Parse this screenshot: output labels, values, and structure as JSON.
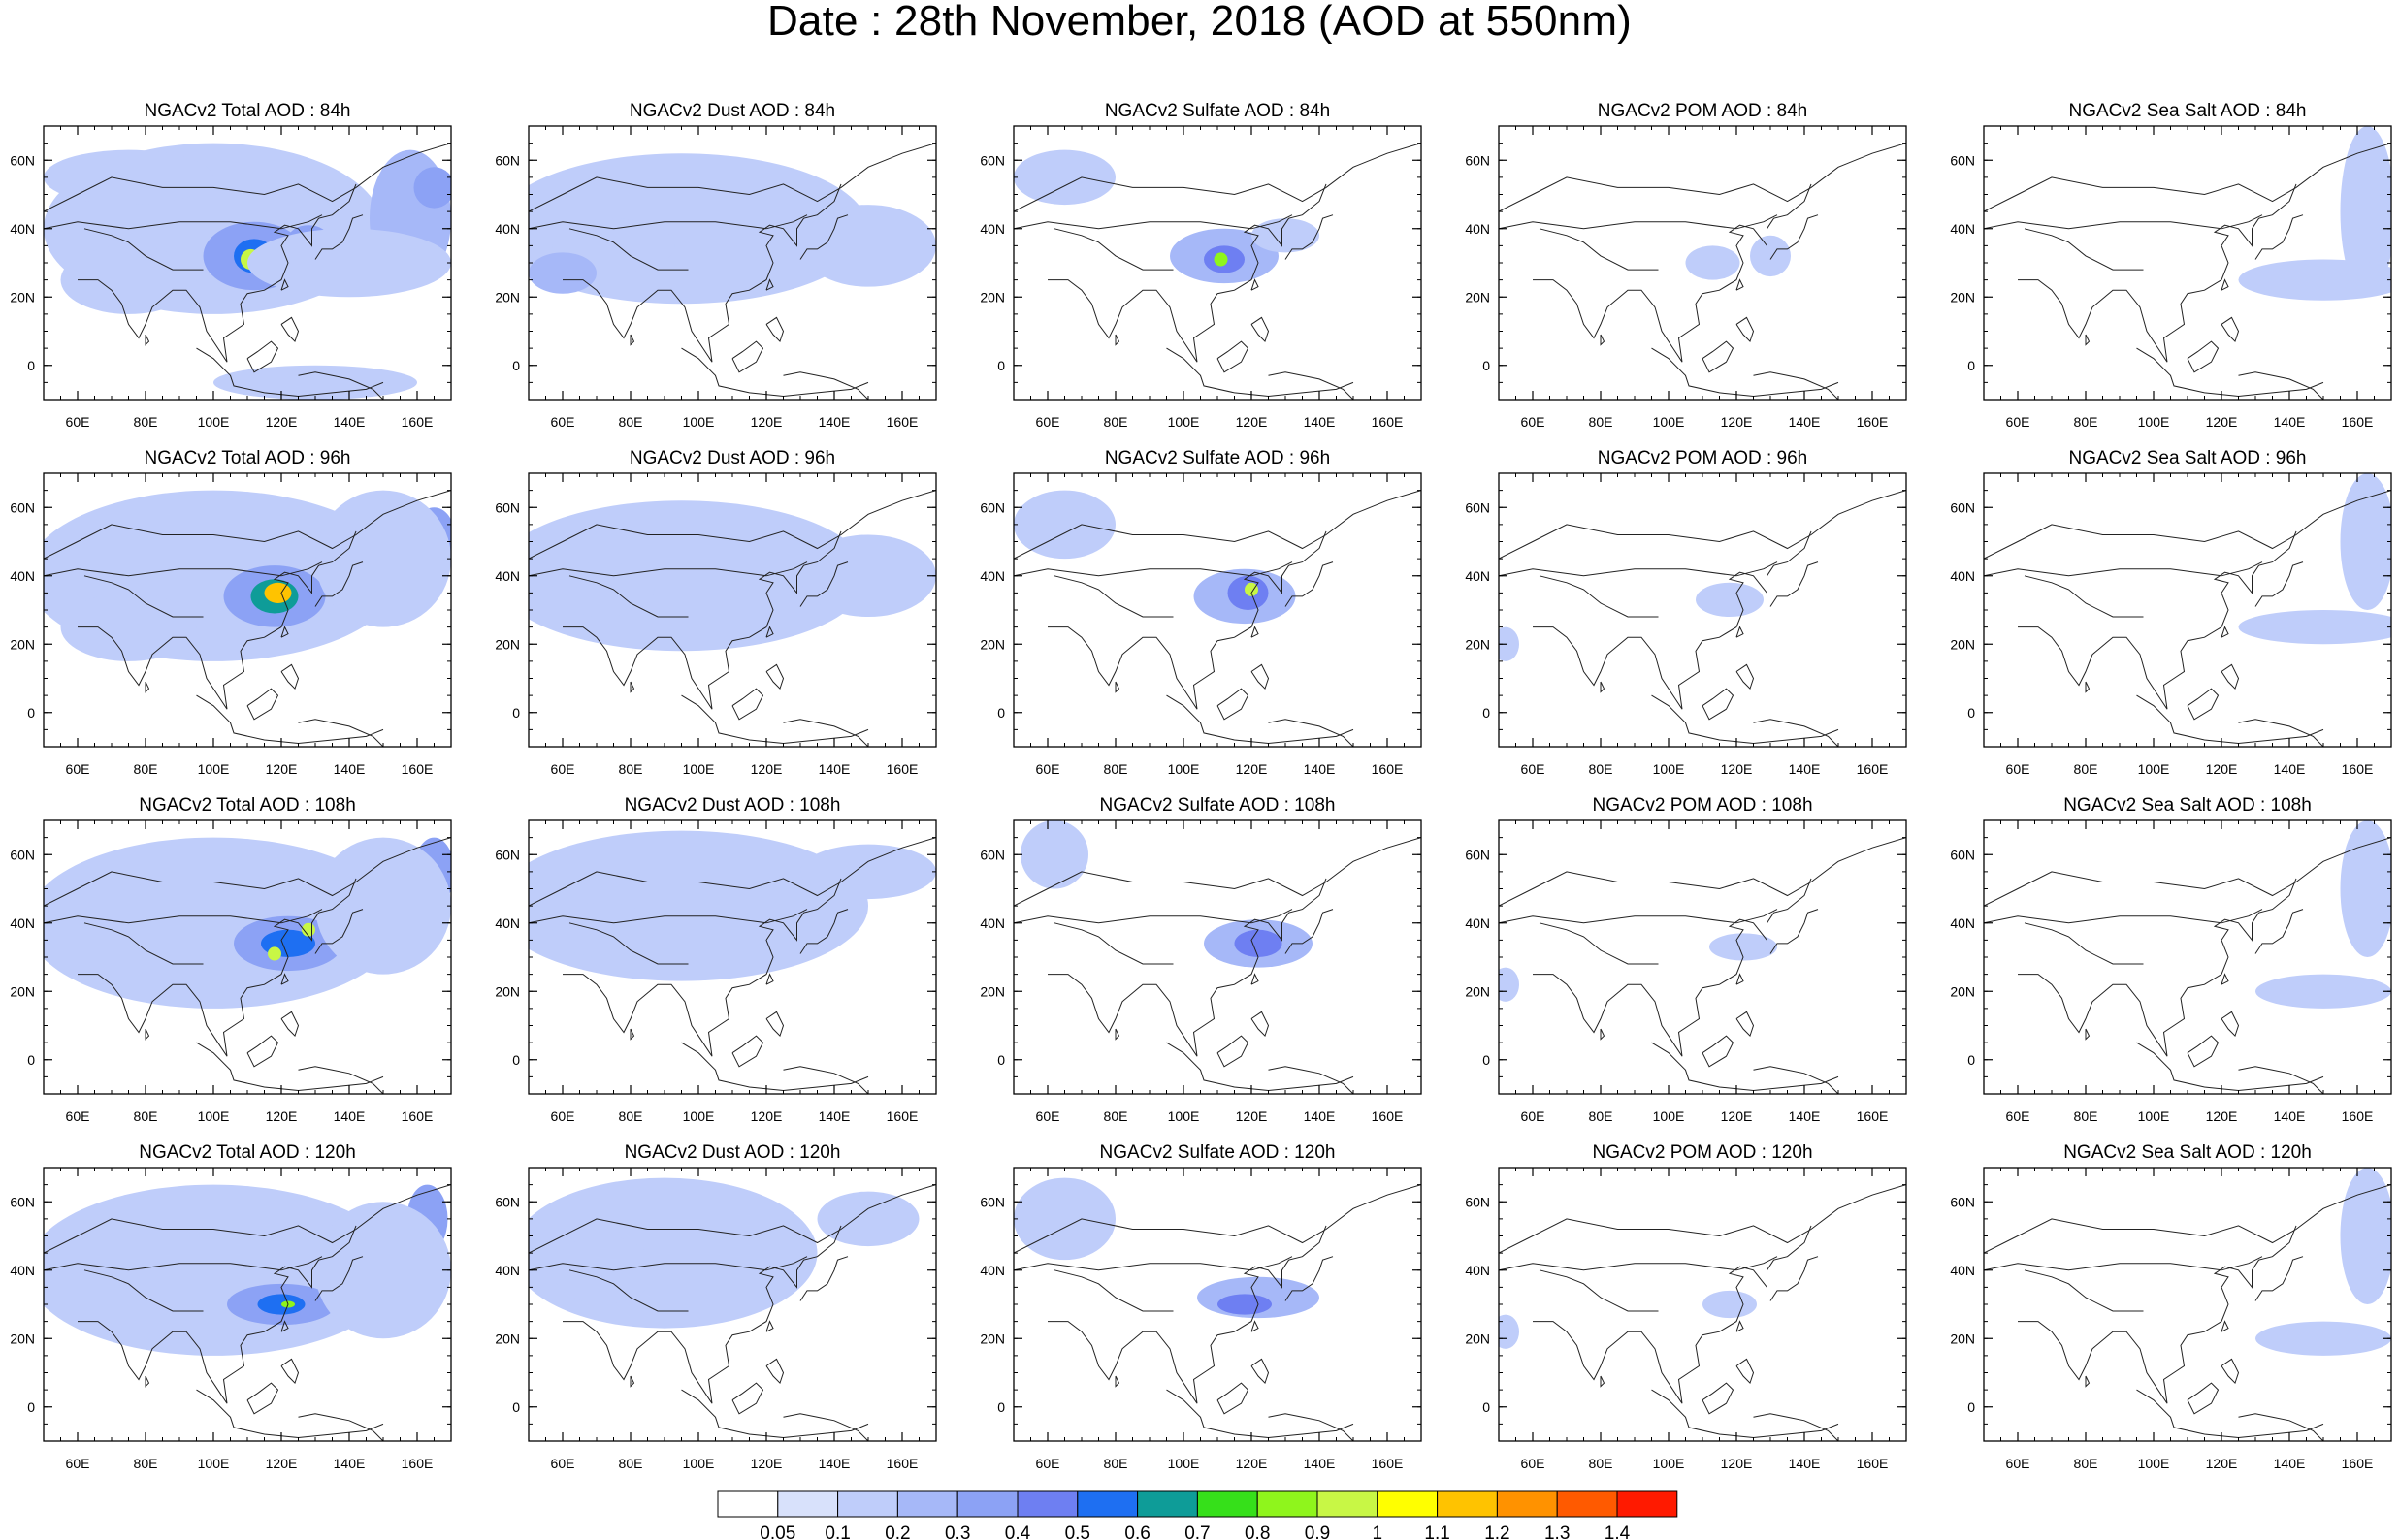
{
  "title": "Date : 28th November, 2018 (AOD at 550nm)",
  "panels": [
    [
      "NGACv2 Total AOD : 84h",
      "NGACv2 Dust AOD : 84h",
      "NGACv2 Sulfate AOD : 84h",
      "NGACv2 POM AOD : 84h",
      "NGACv2 Sea Salt AOD : 84h"
    ],
    [
      "NGACv2 Total AOD : 96h",
      "NGACv2 Dust AOD : 96h",
      "NGACv2 Sulfate AOD : 96h",
      "NGACv2 POM AOD : 96h",
      "NGACv2 Sea Salt AOD : 96h"
    ],
    [
      "NGACv2 Total AOD : 108h",
      "NGACv2 Dust AOD : 108h",
      "NGACv2 Sulfate AOD : 108h",
      "NGACv2 POM AOD : 108h",
      "NGACv2 Sea Salt AOD : 108h"
    ],
    [
      "NGACv2 Total AOD : 120h",
      "NGACv2 Dust AOD : 120h",
      "NGACv2 Sulfate AOD : 120h",
      "NGACv2 POM AOD : 120h",
      "NGACv2 Sea Salt  AOD : 120h"
    ]
  ],
  "map": {
    "lon_range": [
      50,
      170
    ],
    "lat_range": [
      -10,
      70
    ],
    "lon_ticks": [
      "60E",
      "80E",
      "100E",
      "120E",
      "140E",
      "160E"
    ],
    "lat_ticks": [
      "60N",
      "40N",
      "20N",
      "0"
    ]
  },
  "colorbar": {
    "labels": [
      "0.05",
      "0.1",
      "0.2",
      "0.3",
      "0.4",
      "0.5",
      "0.6",
      "0.7",
      "0.8",
      "0.9",
      "1",
      "1.1",
      "1.2",
      "1.3",
      "1.4"
    ],
    "colors": [
      "#ffffff",
      "#d8e1fb",
      "#bfcdfa",
      "#a6b8f8",
      "#8ca2f5",
      "#6e7ff2",
      "#1e6ff2",
      "#0e9c98",
      "#36e01a",
      "#8ff51c",
      "#c8f745",
      "#ffff00",
      "#ffc300",
      "#ff9200",
      "#ff5a00",
      "#ff1a00"
    ]
  },
  "chart_data": {
    "type": "heatmap",
    "title": "Date : 28th November, 2018 (AOD at 550nm)",
    "xlabel": "",
    "ylabel": "",
    "x_ticks": [
      "60E",
      "80E",
      "100E",
      "120E",
      "140E",
      "160E"
    ],
    "y_ticks": [
      "60N",
      "40N",
      "20N",
      "0"
    ],
    "xlim": [
      50,
      170
    ],
    "ylim": [
      -10,
      70
    ],
    "color_levels": [
      0.05,
      0.1,
      0.2,
      0.3,
      0.4,
      0.5,
      0.6,
      0.7,
      0.8,
      0.9,
      1,
      1.1,
      1.2,
      1.3,
      1.4
    ],
    "grid": false,
    "legend": "bottom colorbar",
    "panels": [
      {
        "title": "NGACv2 Total AOD : 84h",
        "blobs": [
          {
            "lon": 100,
            "lat": 40,
            "rx": 50,
            "ry": 25,
            "v": 0.13
          },
          {
            "lon": 112,
            "lat": 32,
            "rx": 15,
            "ry": 10,
            "v": 0.3
          },
          {
            "lon": 112,
            "lat": 32,
            "rx": 6,
            "ry": 5,
            "v": 0.55
          },
          {
            "lon": 111,
            "lat": 31,
            "rx": 3,
            "ry": 3,
            "v": 0.9
          },
          {
            "lon": 75,
            "lat": 55,
            "rx": 25,
            "ry": 8,
            "v": 0.18
          },
          {
            "lon": 158,
            "lat": 43,
            "rx": 12,
            "ry": 20,
            "v": 0.2
          },
          {
            "lon": 165,
            "lat": 52,
            "rx": 6,
            "ry": 6,
            "v": 0.35
          },
          {
            "lon": 128,
            "lat": 37,
            "rx": 6,
            "ry": 4,
            "v": 0.35
          },
          {
            "lon": 75,
            "lat": 25,
            "rx": 20,
            "ry": 10,
            "v": 0.15
          },
          {
            "lon": 130,
            "lat": -5,
            "rx": 30,
            "ry": 5,
            "v": 0.12
          },
          {
            "lon": 140,
            "lat": 30,
            "rx": 30,
            "ry": 10,
            "v": 0.12
          }
        ]
      },
      {
        "title": "NGACv2 Dust AOD : 84h",
        "blobs": [
          {
            "lon": 95,
            "lat": 40,
            "rx": 55,
            "ry": 22,
            "v": 0.11
          },
          {
            "lon": 75,
            "lat": 35,
            "rx": 18,
            "ry": 8,
            "v": 0.18
          },
          {
            "lon": 60,
            "lat": 27,
            "rx": 10,
            "ry": 6,
            "v": 0.2
          },
          {
            "lon": 150,
            "lat": 35,
            "rx": 20,
            "ry": 12,
            "v": 0.1
          }
        ]
      },
      {
        "title": "NGACv2 Sulfate AOD : 84h",
        "blobs": [
          {
            "lon": 112,
            "lat": 32,
            "rx": 16,
            "ry": 8,
            "v": 0.2
          },
          {
            "lon": 112,
            "lat": 31,
            "rx": 6,
            "ry": 4,
            "v": 0.45
          },
          {
            "lon": 111,
            "lat": 31,
            "rx": 2,
            "ry": 2,
            "v": 0.85
          },
          {
            "lon": 65,
            "lat": 55,
            "rx": 15,
            "ry": 8,
            "v": 0.12
          },
          {
            "lon": 130,
            "lat": 38,
            "rx": 10,
            "ry": 5,
            "v": 0.15
          }
        ]
      },
      {
        "title": "NGACv2 POM AOD : 84h",
        "blobs": [
          {
            "lon": 113,
            "lat": 30,
            "rx": 8,
            "ry": 5,
            "v": 0.1
          },
          {
            "lon": 130,
            "lat": 32,
            "rx": 6,
            "ry": 6,
            "v": 0.1
          }
        ]
      },
      {
        "title": "NGACv2 Sea Salt AOD : 84h",
        "blobs": [
          {
            "lon": 163,
            "lat": 45,
            "rx": 8,
            "ry": 25,
            "v": 0.15
          },
          {
            "lon": 150,
            "lat": 25,
            "rx": 25,
            "ry": 6,
            "v": 0.12
          }
        ]
      },
      {
        "title": "NGACv2 Total AOD : 96h",
        "blobs": [
          {
            "lon": 100,
            "lat": 40,
            "rx": 55,
            "ry": 25,
            "v": 0.13
          },
          {
            "lon": 118,
            "lat": 34,
            "rx": 15,
            "ry": 9,
            "v": 0.3
          },
          {
            "lon": 118,
            "lat": 34,
            "rx": 7,
            "ry": 5,
            "v": 0.6
          },
          {
            "lon": 119,
            "lat": 35,
            "rx": 4,
            "ry": 3,
            "v": 1.1
          },
          {
            "lon": 165,
            "lat": 52,
            "rx": 6,
            "ry": 8,
            "v": 0.3
          },
          {
            "lon": 150,
            "lat": 45,
            "rx": 20,
            "ry": 20,
            "v": 0.15
          },
          {
            "lon": 75,
            "lat": 25,
            "rx": 20,
            "ry": 10,
            "v": 0.15
          }
        ]
      },
      {
        "title": "NGACv2 Dust AOD : 96h",
        "blobs": [
          {
            "lon": 95,
            "lat": 40,
            "rx": 55,
            "ry": 22,
            "v": 0.11
          },
          {
            "lon": 72,
            "lat": 36,
            "rx": 15,
            "ry": 8,
            "v": 0.18
          },
          {
            "lon": 150,
            "lat": 40,
            "rx": 20,
            "ry": 12,
            "v": 0.1
          }
        ]
      },
      {
        "title": "NGACv2 Sulfate AOD : 96h",
        "blobs": [
          {
            "lon": 118,
            "lat": 34,
            "rx": 15,
            "ry": 8,
            "v": 0.2
          },
          {
            "lon": 119,
            "lat": 35,
            "rx": 6,
            "ry": 5,
            "v": 0.45
          },
          {
            "lon": 120,
            "lat": 36,
            "rx": 2,
            "ry": 2,
            "v": 0.9
          },
          {
            "lon": 65,
            "lat": 55,
            "rx": 15,
            "ry": 10,
            "v": 0.12
          }
        ]
      },
      {
        "title": "NGACv2 POM AOD : 96h",
        "blobs": [
          {
            "lon": 118,
            "lat": 33,
            "rx": 10,
            "ry": 5,
            "v": 0.12
          },
          {
            "lon": 52,
            "lat": 20,
            "rx": 4,
            "ry": 5,
            "v": 0.15
          }
        ]
      },
      {
        "title": "NGACv2 Sea Salt AOD : 96h",
        "blobs": [
          {
            "lon": 163,
            "lat": 50,
            "rx": 8,
            "ry": 20,
            "v": 0.18
          },
          {
            "lon": 150,
            "lat": 25,
            "rx": 25,
            "ry": 5,
            "v": 0.12
          }
        ]
      },
      {
        "title": "NGACv2 Total AOD : 108h",
        "blobs": [
          {
            "lon": 100,
            "lat": 40,
            "rx": 55,
            "ry": 25,
            "v": 0.13
          },
          {
            "lon": 122,
            "lat": 34,
            "rx": 16,
            "ry": 8,
            "v": 0.3
          },
          {
            "lon": 122,
            "lat": 34,
            "rx": 8,
            "ry": 4,
            "v": 0.55
          },
          {
            "lon": 118,
            "lat": 31,
            "rx": 2,
            "ry": 2,
            "v": 0.9
          },
          {
            "lon": 128,
            "lat": 38,
            "rx": 2,
            "ry": 2,
            "v": 0.9
          },
          {
            "lon": 165,
            "lat": 55,
            "rx": 6,
            "ry": 10,
            "v": 0.3
          },
          {
            "lon": 150,
            "lat": 45,
            "rx": 20,
            "ry": 20,
            "v": 0.15
          }
        ]
      },
      {
        "title": "NGACv2 Dust AOD : 108h",
        "blobs": [
          {
            "lon": 95,
            "lat": 45,
            "rx": 55,
            "ry": 22,
            "v": 0.11
          },
          {
            "lon": 72,
            "lat": 38,
            "rx": 15,
            "ry": 8,
            "v": 0.15
          },
          {
            "lon": 150,
            "lat": 55,
            "rx": 20,
            "ry": 8,
            "v": 0.1
          }
        ]
      },
      {
        "title": "NGACv2 Sulfate AOD : 108h",
        "blobs": [
          {
            "lon": 122,
            "lat": 34,
            "rx": 16,
            "ry": 7,
            "v": 0.2
          },
          {
            "lon": 122,
            "lat": 34,
            "rx": 7,
            "ry": 4,
            "v": 0.4
          },
          {
            "lon": 62,
            "lat": 60,
            "rx": 10,
            "ry": 10,
            "v": 0.12
          }
        ]
      },
      {
        "title": "NGACv2 POM AOD : 108h",
        "blobs": [
          {
            "lon": 122,
            "lat": 33,
            "rx": 10,
            "ry": 4,
            "v": 0.1
          },
          {
            "lon": 52,
            "lat": 22,
            "rx": 4,
            "ry": 5,
            "v": 0.15
          }
        ]
      },
      {
        "title": "NGACv2 Sea Salt AOD : 108h",
        "blobs": [
          {
            "lon": 163,
            "lat": 50,
            "rx": 8,
            "ry": 20,
            "v": 0.18
          },
          {
            "lon": 150,
            "lat": 20,
            "rx": 20,
            "ry": 5,
            "v": 0.1
          }
        ]
      },
      {
        "title": "NGACv2 Total AOD : 120h",
        "blobs": [
          {
            "lon": 100,
            "lat": 40,
            "rx": 55,
            "ry": 25,
            "v": 0.13
          },
          {
            "lon": 120,
            "lat": 30,
            "rx": 16,
            "ry": 6,
            "v": 0.3
          },
          {
            "lon": 120,
            "lat": 30,
            "rx": 7,
            "ry": 3,
            "v": 0.5
          },
          {
            "lon": 122,
            "lat": 30,
            "rx": 2,
            "ry": 1,
            "v": 0.85
          },
          {
            "lon": 163,
            "lat": 55,
            "rx": 6,
            "ry": 10,
            "v": 0.3
          },
          {
            "lon": 150,
            "lat": 40,
            "rx": 20,
            "ry": 20,
            "v": 0.15
          }
        ]
      },
      {
        "title": "NGACv2 Dust AOD : 120h",
        "blobs": [
          {
            "lon": 90,
            "lat": 45,
            "rx": 45,
            "ry": 22,
            "v": 0.11
          },
          {
            "lon": 72,
            "lat": 40,
            "rx": 15,
            "ry": 10,
            "v": 0.15
          },
          {
            "lon": 150,
            "lat": 55,
            "rx": 15,
            "ry": 8,
            "v": 0.1
          }
        ]
      },
      {
        "title": "NGACv2 Sulfate AOD : 120h",
        "blobs": [
          {
            "lon": 122,
            "lat": 32,
            "rx": 18,
            "ry": 6,
            "v": 0.2
          },
          {
            "lon": 118,
            "lat": 30,
            "rx": 8,
            "ry": 3,
            "v": 0.4
          },
          {
            "lon": 65,
            "lat": 55,
            "rx": 15,
            "ry": 12,
            "v": 0.12
          }
        ]
      },
      {
        "title": "NGACv2 POM AOD : 120h",
        "blobs": [
          {
            "lon": 118,
            "lat": 30,
            "rx": 8,
            "ry": 4,
            "v": 0.1
          },
          {
            "lon": 52,
            "lat": 22,
            "rx": 4,
            "ry": 5,
            "v": 0.15
          }
        ]
      },
      {
        "title": "NGACv2 Sea Salt  AOD : 120h",
        "blobs": [
          {
            "lon": 163,
            "lat": 50,
            "rx": 8,
            "ry": 20,
            "v": 0.18
          },
          {
            "lon": 150,
            "lat": 20,
            "rx": 20,
            "ry": 5,
            "v": 0.1
          }
        ]
      }
    ]
  }
}
